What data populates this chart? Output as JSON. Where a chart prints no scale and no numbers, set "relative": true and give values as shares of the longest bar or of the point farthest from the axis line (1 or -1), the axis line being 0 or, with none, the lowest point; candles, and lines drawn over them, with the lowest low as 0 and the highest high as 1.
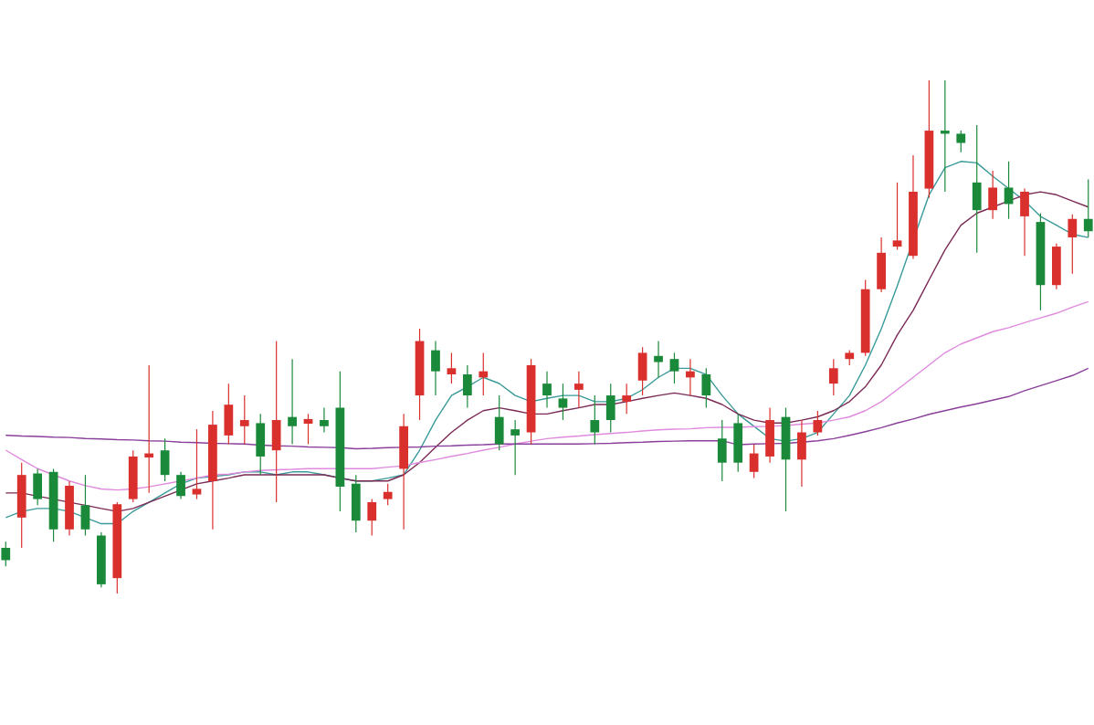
{
  "chart_data": [
    {
      "type": "candlestick",
      "relative": true,
      "categories": [
        null,
        null,
        null,
        null,
        null,
        null,
        null,
        null,
        null,
        null,
        null,
        null,
        null,
        null,
        null,
        null,
        null,
        null,
        null,
        null,
        null,
        null,
        null,
        null,
        null,
        null,
        null,
        null,
        null,
        null,
        null,
        null,
        null,
        null,
        null,
        null,
        null,
        null,
        null,
        null,
        null,
        null,
        null,
        null,
        null,
        null,
        null,
        null,
        null,
        null,
        null,
        null,
        null,
        null,
        null,
        null,
        null,
        null,
        null,
        null,
        null,
        null,
        null,
        null,
        null,
        null,
        null,
        null,
        null
      ],
      "ohlc": [
        [
          0.089,
          0.101,
          0.053,
          0.065
        ],
        [
          0.148,
          0.255,
          0.089,
          0.231
        ],
        [
          0.234,
          0.243,
          0.172,
          0.184
        ],
        [
          0.237,
          0.243,
          0.101,
          0.125
        ],
        [
          0.125,
          0.219,
          0.113,
          0.21
        ],
        [
          0.172,
          0.231,
          0.113,
          0.125
        ],
        [
          0.113,
          0.119,
          0.012,
          0.018
        ],
        [
          0.03,
          0.178,
          0.0,
          0.174
        ],
        [
          0.184,
          0.279,
          0.178,
          0.267
        ],
        [
          0.265,
          0.445,
          0.196,
          0.273
        ],
        [
          0.279,
          0.302,
          0.219,
          0.231
        ],
        [
          0.231,
          0.237,
          0.184,
          0.19
        ],
        [
          0.193,
          0.32,
          0.184,
          0.204
        ],
        [
          0.219,
          0.356,
          0.125,
          0.329
        ],
        [
          0.308,
          0.409,
          0.291,
          0.368
        ],
        [
          0.326,
          0.386,
          0.291,
          0.338
        ],
        [
          0.332,
          0.35,
          0.231,
          0.267
        ],
        [
          0.279,
          0.492,
          0.178,
          0.338
        ],
        [
          0.344,
          0.457,
          0.291,
          0.326
        ],
        [
          0.331,
          0.35,
          0.291,
          0.34
        ],
        [
          0.338,
          0.362,
          0.314,
          0.326
        ],
        [
          0.362,
          0.433,
          0.16,
          0.208
        ],
        [
          0.214,
          0.231,
          0.119,
          0.142
        ],
        [
          0.142,
          0.184,
          0.113,
          0.178
        ],
        [
          0.184,
          0.214,
          0.172,
          0.198
        ],
        [
          0.243,
          0.35,
          0.125,
          0.326
        ],
        [
          0.386,
          0.516,
          0.338,
          0.492
        ],
        [
          0.474,
          0.492,
          0.386,
          0.433
        ],
        [
          0.427,
          0.469,
          0.409,
          0.439
        ],
        [
          0.427,
          0.445,
          0.362,
          0.386
        ],
        [
          0.421,
          0.469,
          0.386,
          0.433
        ],
        [
          0.344,
          0.386,
          0.279,
          0.291
        ],
        [
          0.32,
          0.338,
          0.231,
          0.308
        ],
        [
          0.314,
          0.457,
          0.291,
          0.445
        ],
        [
          0.409,
          0.433,
          0.362,
          0.386
        ],
        [
          0.38,
          0.409,
          0.338,
          0.362
        ],
        [
          0.397,
          0.433,
          0.362,
          0.409
        ],
        [
          0.338,
          0.386,
          0.291,
          0.314
        ],
        [
          0.386,
          0.409,
          0.314,
          0.338
        ],
        [
          0.374,
          0.409,
          0.35,
          0.386
        ],
        [
          0.415,
          0.48,
          0.386,
          0.469
        ],
        [
          0.463,
          0.492,
          0.421,
          0.451
        ],
        [
          0.457,
          0.469,
          0.409,
          0.433
        ],
        [
          0.421,
          0.457,
          0.386,
          0.433
        ],
        [
          0.427,
          0.439,
          0.362,
          0.386
        ],
        [
          0.302,
          0.338,
          0.219,
          0.255
        ],
        [
          0.332,
          0.35,
          0.237,
          0.255
        ],
        [
          0.237,
          0.291,
          0.225,
          0.273
        ],
        [
          0.267,
          0.362,
          0.255,
          0.338
        ],
        [
          0.344,
          0.362,
          0.16,
          0.261
        ],
        [
          0.261,
          0.338,
          0.208,
          0.314
        ],
        [
          0.314,
          0.356,
          0.308,
          0.338
        ],
        [
          0.409,
          0.457,
          0.386,
          0.439
        ],
        [
          0.457,
          0.474,
          0.445,
          0.469
        ],
        [
          0.469,
          0.611,
          0.463,
          0.593
        ],
        [
          0.593,
          0.694,
          0.587,
          0.664
        ],
        [
          0.676,
          0.801,
          0.67,
          0.688
        ],
        [
          0.658,
          0.854,
          0.652,
          0.783
        ],
        [
          0.789,
          1.0,
          0.771,
          0.902
        ],
        [
          0.902,
          1.0,
          0.783,
          0.896
        ],
        [
          0.896,
          0.902,
          0.86,
          0.878
        ],
        [
          0.801,
          0.913,
          0.664,
          0.747
        ],
        [
          0.747,
          0.824,
          0.73,
          0.791
        ],
        [
          0.791,
          0.842,
          0.73,
          0.759
        ],
        [
          0.735,
          0.789,
          0.658,
          0.783
        ],
        [
          0.724,
          0.741,
          0.552,
          0.601
        ],
        [
          0.601,
          0.682,
          0.593,
          0.676
        ],
        [
          0.694,
          0.739,
          0.623,
          0.73
        ],
        [
          0.73,
          0.807,
          0.694,
          0.706
        ]
      ]
    },
    {
      "type": "line",
      "relative": true,
      "categories": [
        null,
        null,
        null,
        null,
        null,
        null,
        null,
        null,
        null,
        null,
        null,
        null,
        null,
        null,
        null,
        null,
        null,
        null,
        null,
        null,
        null,
        null,
        null,
        null,
        null,
        null,
        null,
        null,
        null,
        null,
        null,
        null,
        null,
        null,
        null,
        null,
        null,
        null,
        null,
        null,
        null,
        null,
        null,
        null,
        null,
        null,
        null,
        null,
        null,
        null,
        null,
        null,
        null,
        null,
        null,
        null,
        null,
        null,
        null,
        null,
        null,
        null,
        null,
        null,
        null,
        null,
        null,
        null,
        null
      ],
      "series": [
        {
          "color": "#3a9a9a",
          "values": [
            0.017,
            0.034,
            0.042,
            0.042,
            0.034,
            0.017,
            0,
            0,
            0.034,
            0.059,
            0.085,
            0.11,
            0.126,
            null,
            0.135,
            0.143,
            0.143,
            0.135,
            0.143,
            0.143,
            0.135,
            null,
            0.118,
            0.118,
            0.126,
            0.135,
            0.203,
            0.286,
            0.354,
            0.378,
            0.404,
            0.387,
            0.354,
            0.337,
            0.346,
            0.354,
            0.354,
            0.337,
            0.337,
            0.346,
            0.37,
            0.404,
            0.429,
            0.429,
            0.412,
            0.354,
            0.303,
            0.269,
            0.235,
            0.228,
            0.235,
            0.252,
            0.303,
            0.354,
            0.438,
            0.538,
            0.656,
            null,
            0.908,
            0.983,
            1,
            0.996,
            0.959,
            0.925,
            0.891,
            0.848,
            0.824,
            0.799,
            0.79
          ]
        },
        {
          "color": "#7a2a55",
          "values": [
            0.085,
            0.085,
            0.076,
            0.068,
            0.059,
            0.051,
            0.042,
            0.034,
            0.042,
            0.059,
            0.076,
            0.093,
            0.11,
            0.118,
            0.126,
            0.135,
            0.135,
            0.135,
            0.135,
            0.135,
            0.135,
            0.126,
            0.118,
            0.118,
            0.118,
            0.135,
            0.169,
            0.211,
            0.252,
            0.286,
            0.312,
            0.32,
            0.312,
            0.303,
            0.303,
            0.312,
            0.32,
            0.329,
            0.329,
            0.337,
            0.346,
            0.354,
            0.361,
            0.354,
            0.346,
            0.329,
            0.303,
            0.286,
            0.278,
            0.278,
            0.286,
            0.295,
            0.312,
            0.337,
            0.378,
            0.438,
            0.521,
            0.589,
            0.673,
            0.756,
            0.824,
            0.857,
            0.874,
            0.891,
            0.908,
            0.916,
            0.908,
            0.891,
            0.874
          ]
        },
        {
          "color": "#e08adf",
          "values": [
            0.203,
            0.177,
            0.152,
            0.135,
            0.118,
            0.105,
            0.096,
            0.093,
            0.096,
            0.102,
            0.11,
            0.118,
            0.126,
            0.135,
            0.137,
            0.143,
            0.147,
            0.149,
            0.15,
            0.152,
            0.152,
            0.152,
            0.152,
            0.152,
            0.156,
            0.16,
            0.169,
            0.177,
            0.186,
            0.194,
            0.203,
            0.211,
            0.22,
            0.228,
            0.235,
            0.239,
            0.242,
            0.246,
            0.249,
            0.252,
            0.256,
            0.259,
            0.261,
            0.262,
            0.265,
            0.266,
            0.266,
            0.268,
            0.269,
            0.271,
            0.275,
            0.278,
            0.286,
            0.295,
            0.312,
            0.337,
            0.37,
            0.404,
            0.438,
            0.472,
            0.496,
            0.513,
            0.53,
            0.541,
            0.555,
            0.568,
            0.581,
            0.598,
            0.613
          ]
        },
        {
          "color": "#8a3f9a",
          "values": [
            0.244,
            0.242,
            0.241,
            0.239,
            0.238,
            0.235,
            0.234,
            0.232,
            0.231,
            0.229,
            0.228,
            0.225,
            0.224,
            0.222,
            0.221,
            0.22,
            0.217,
            0.215,
            0.214,
            0.212,
            0.211,
            0.21,
            0.207,
            0.208,
            0.21,
            0.211,
            0.212,
            0.214,
            0.215,
            0.217,
            0.218,
            0.22,
            0.22,
            0.22,
            0.22,
            0.22,
            0.22,
            0.221,
            0.222,
            0.224,
            0.225,
            0.227,
            0.228,
            0.229,
            0.229,
            0.229,
            0.218,
            0.22,
            0.221,
            0.222,
            0.225,
            0.229,
            0.235,
            0.244,
            0.254,
            0.265,
            0.278,
            0.289,
            0.302,
            0.312,
            0.322,
            0.331,
            0.341,
            0.351,
            0.367,
            0.381,
            0.395,
            0.409,
            0.429
          ]
        }
      ]
    }
  ]
}
